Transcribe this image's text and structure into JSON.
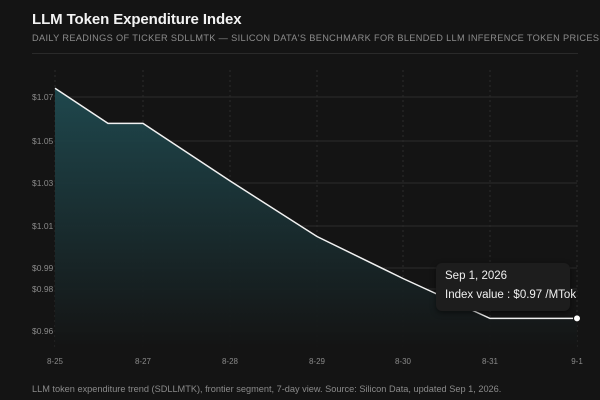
{
  "header": {
    "title": "LLM Token Expenditure Index",
    "subtitle": "Daily readings of ticker SDLLMTK — Silicon Data's benchmark for blended LLM inference token prices."
  },
  "caption": "LLM token expenditure trend (SDLLMTK), frontier segment, 7-day view. Source: Silicon Data, updated Sep 1, 2026.",
  "tooltip": {
    "date": "Sep 1, 2026",
    "label": "Index value :",
    "value": "$0.97 /MTok"
  },
  "colors": {
    "background": "#141414",
    "line": "#f2f2f2",
    "area_top": "#1f4a50",
    "area_bottom": "#141414",
    "grid": "#2b2b2b"
  },
  "chart_data": {
    "type": "area",
    "title": "LLM Token Expenditure Index",
    "xlabel": "",
    "ylabel": "",
    "categories": [
      "8-25",
      "8-27",
      "8-28",
      "8-29",
      "8-30",
      "8-31",
      "9-1"
    ],
    "series": [
      {
        "x": [
          "8-25",
          "8-26",
          "8-27",
          "8-28",
          "8-29",
          "8-30",
          "8-31",
          "9-1"
        ],
        "values": [
          1.074,
          1.058,
          1.058,
          1.031,
          1.005,
          0.985,
          0.966,
          0.966
        ]
      }
    ],
    "y_ticks": [
      {
        "value": 1.07,
        "label": "$1.07"
      },
      {
        "value": 1.05,
        "label": "$1.05"
      },
      {
        "value": 1.03,
        "label": "$1.03"
      },
      {
        "value": 1.01,
        "label": "$1.01"
      },
      {
        "value": 0.99,
        "label": "$0.99"
      },
      {
        "value": 0.98,
        "label": "$0.98"
      },
      {
        "value": 0.96,
        "label": "$0.96"
      }
    ],
    "grid": true,
    "highlighted_point": "9-1"
  }
}
